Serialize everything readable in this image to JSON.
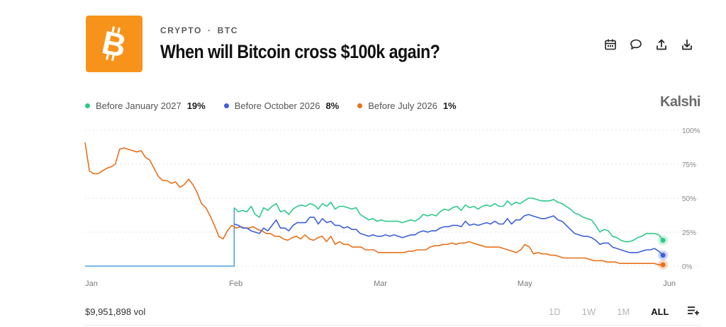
{
  "header": {
    "category": "CRYPTO",
    "separator": "·",
    "ticker": "BTC",
    "title": "When will Bitcoin cross $100k again?",
    "logo_icon": "bitcoin-icon",
    "actions": [
      "calendar-icon",
      "comment-icon",
      "share-icon",
      "download-icon"
    ]
  },
  "brand": "Kalshi",
  "legend": [
    {
      "label": "Before January 2027",
      "value": "19%",
      "color": "#2ec98a"
    },
    {
      "label": "Before October 2026",
      "value": "8%",
      "color": "#3d5fd8"
    },
    {
      "label": "Before July 2026",
      "value": "1%",
      "color": "#e8701a"
    }
  ],
  "footer": {
    "volume": "$9,951,898 vol",
    "ranges": [
      "1D",
      "1W",
      "1M",
      "ALL"
    ],
    "active_range": "ALL",
    "filter_icon": "list-add-icon"
  },
  "chart_data": {
    "type": "line",
    "x_ticks": [
      "Jan",
      "Feb",
      "Mar",
      "May",
      "Jun"
    ],
    "x_tick_days": [
      0,
      31,
      62,
      93,
      124
    ],
    "y_ticks": [
      "100%",
      "75%",
      "50%",
      "25%",
      "0%"
    ],
    "ylim": [
      0,
      100
    ],
    "grid": true,
    "legend_position": "top-left",
    "series": [
      {
        "name": "Before January 2027",
        "color": "#2ec98a",
        "start_day": 32,
        "values": [
          43,
          40,
          41,
          40,
          44,
          38,
          36,
          43,
          41,
          44,
          46,
          40,
          41,
          38,
          42,
          44,
          45,
          44,
          46,
          45,
          42,
          46,
          44,
          47,
          42,
          44,
          44,
          43,
          42,
          43,
          38,
          36,
          34,
          35,
          33,
          34,
          33,
          33,
          33,
          33,
          32,
          33,
          34,
          33,
          35,
          38,
          37,
          38,
          37,
          40,
          42,
          41,
          43,
          44,
          41,
          45,
          43,
          44,
          42,
          44,
          45,
          44,
          46,
          44,
          44,
          48,
          45,
          47,
          46,
          48,
          50,
          50,
          49,
          48,
          48,
          48,
          49,
          47,
          46,
          44,
          42,
          39,
          38,
          36,
          35,
          34,
          30,
          25,
          27,
          26,
          22,
          21,
          19,
          18,
          18,
          19,
          21,
          22,
          24,
          24,
          24,
          23,
          19
        ]
      },
      {
        "name": "Before October 2026",
        "color": "#3d5fd8",
        "start_day": 32,
        "values": [
          31,
          30,
          28,
          28,
          26,
          25,
          24,
          28,
          26,
          30,
          34,
          28,
          28,
          26,
          30,
          32,
          32,
          32,
          36,
          36,
          31,
          35,
          32,
          33,
          30,
          30,
          28,
          29,
          27,
          27,
          24,
          23,
          22,
          23,
          22,
          22,
          23,
          22,
          23,
          22,
          21,
          22,
          23,
          23,
          25,
          26,
          25,
          26,
          26,
          28,
          29,
          29,
          30,
          30,
          29,
          33,
          30,
          31,
          30,
          31,
          32,
          31,
          33,
          31,
          31,
          35,
          31,
          34,
          34,
          37,
          38,
          37,
          36,
          35,
          35,
          36,
          37,
          34,
          33,
          30,
          27,
          24,
          23,
          22,
          22,
          21,
          19,
          16,
          17,
          17,
          14,
          13,
          12,
          11,
          10,
          10,
          10,
          11,
          12,
          12,
          13,
          11,
          8
        ]
      },
      {
        "name": "Before July 2026",
        "color": "#e8701a",
        "start_day": 0,
        "values": [
          91,
          70,
          68,
          68,
          70,
          72,
          73,
          75,
          86,
          87,
          86,
          85,
          84,
          85,
          80,
          78,
          72,
          66,
          63,
          63,
          61,
          62,
          58,
          60,
          64,
          60,
          54,
          46,
          43,
          37,
          30,
          22,
          20,
          26,
          30,
          28,
          29,
          28,
          28,
          29,
          27,
          26,
          24,
          24,
          22,
          22,
          20,
          19,
          21,
          22,
          20,
          23,
          20,
          19,
          21,
          22,
          18,
          22,
          16,
          18,
          16,
          16,
          14,
          14,
          14,
          12,
          12,
          12,
          10,
          10,
          10,
          10,
          10,
          10,
          10,
          11,
          11,
          12,
          12,
          12,
          14,
          15,
          15,
          16,
          16,
          17,
          16,
          17,
          17,
          18,
          17,
          16,
          15,
          14,
          14,
          14,
          14,
          13,
          12,
          11,
          10,
          12,
          16,
          14,
          9,
          10,
          9,
          9,
          8,
          8,
          7,
          6,
          6,
          6,
          6,
          6,
          6,
          5,
          4,
          4,
          4,
          3,
          3,
          3,
          2,
          2,
          2,
          2,
          2,
          2,
          2,
          2,
          2,
          1,
          1
        ]
      },
      {
        "name": "",
        "color": "#4aa3e0",
        "start_day": 0,
        "values": [
          0,
          0,
          0,
          0,
          0,
          0,
          0,
          0,
          0,
          0,
          0,
          0,
          0,
          0,
          0,
          0,
          0,
          0,
          0,
          0,
          0,
          0,
          0,
          0,
          0,
          0,
          0,
          0,
          0,
          0,
          0,
          0,
          0
        ]
      }
    ]
  }
}
